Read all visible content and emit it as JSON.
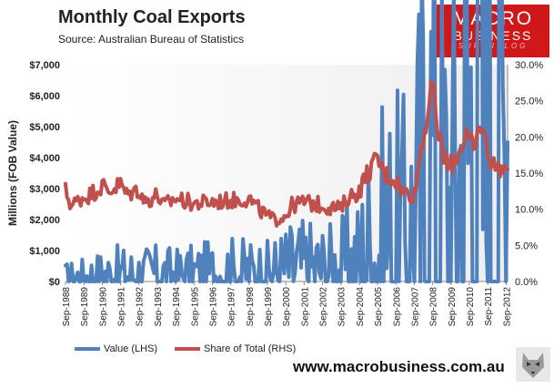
{
  "header": {
    "title": "Monthly  Coal Exports",
    "source": "Source:  Australian Bureau of Statistics"
  },
  "logo": {
    "line1": "MACRO",
    "line2": "BUSINESS",
    "line3": "SUPERBLOG"
  },
  "footer": {
    "url": "www.macrobusiness.com.au"
  },
  "colors": {
    "value": "#4f81bd",
    "share": "#c0504d",
    "plot_bg": "#eeeeee",
    "logo_bg": "#d0181a"
  },
  "chart_data": {
    "type": "line",
    "title": "Monthly  Coal Exports",
    "ylabel": "Millions (FOB Value)",
    "y2label": "",
    "ylim": [
      0,
      7000
    ],
    "y2lim": [
      0,
      30
    ],
    "yticks": [
      "$0",
      "$1,000",
      "$2,000",
      "$3,000",
      "$4,000",
      "$5,000",
      "$6,000",
      "$7,000"
    ],
    "y2ticks": [
      "0.0%",
      "5.0%",
      "10.0%",
      "15.0%",
      "20.0%",
      "25.0%",
      "30.0%"
    ],
    "xticks": [
      "Sep-1988",
      "Sep-1989",
      "Sep-1990",
      "Sep-1991",
      "Sep-1992",
      "Sep-1993",
      "Sep-1994",
      "Sep-1995",
      "Sep-1996",
      "Sep-1997",
      "Sep-1998",
      "Sep-1999",
      "Sep-2000",
      "Sep-2001",
      "Sep-2002",
      "Sep-2003",
      "Sep-2004",
      "Sep-2005",
      "Sep-2006",
      "Sep-2007",
      "Sep-2008",
      "Sep-2009",
      "Sep-2010",
      "Sep-2011",
      "Sep-2012"
    ],
    "x_range": [
      1988.67,
      2012.75
    ],
    "series": [
      {
        "name": "Value (LHS)",
        "axis": "left",
        "points": [
          [
            1988.67,
            130
          ],
          [
            1989.5,
            160
          ],
          [
            1990.67,
            230
          ],
          [
            1991.5,
            250
          ],
          [
            1992.67,
            250
          ],
          [
            1993.67,
            260
          ],
          [
            1994.67,
            240
          ],
          [
            1995.67,
            260
          ],
          [
            1996.67,
            290
          ],
          [
            1997.67,
            320
          ],
          [
            1998.67,
            310
          ],
          [
            1999.67,
            290
          ],
          [
            2000.67,
            420
          ],
          [
            2001.67,
            470
          ],
          [
            2002.67,
            430
          ],
          [
            2003.67,
            450
          ],
          [
            2004.0,
            560
          ],
          [
            2004.67,
            630
          ],
          [
            2005.0,
            1000
          ],
          [
            2005.67,
            1150
          ],
          [
            2006.0,
            1300
          ],
          [
            2006.67,
            1400
          ],
          [
            2007.0,
            1300
          ],
          [
            2007.67,
            1700
          ],
          [
            2008.0,
            2400
          ],
          [
            2008.3,
            3200
          ],
          [
            2008.67,
            3700
          ],
          [
            2009.0,
            2700
          ],
          [
            2009.5,
            2400
          ],
          [
            2009.9,
            2500
          ],
          [
            2010.2,
            3900
          ],
          [
            2010.67,
            4700
          ],
          [
            2011.0,
            5200
          ],
          [
            2011.3,
            5800
          ],
          [
            2011.5,
            6300
          ],
          [
            2011.75,
            5200
          ],
          [
            2012.0,
            5000
          ],
          [
            2012.4,
            4300
          ],
          [
            2012.75,
            4500
          ]
        ]
      },
      {
        "name": "Share of Total (RHS)",
        "axis": "right",
        "points": [
          [
            1988.67,
            12.5
          ],
          [
            1989.0,
            10.5
          ],
          [
            1989.5,
            11.5
          ],
          [
            1990.0,
            12.0
          ],
          [
            1990.67,
            13.3
          ],
          [
            1991.0,
            12.5
          ],
          [
            1991.67,
            13.5
          ],
          [
            1992.0,
            12.0
          ],
          [
            1992.67,
            12.8
          ],
          [
            1993.0,
            11.0
          ],
          [
            1993.67,
            12.0
          ],
          [
            1994.0,
            10.5
          ],
          [
            1994.67,
            11.5
          ],
          [
            1995.67,
            10.8
          ],
          [
            1996.67,
            11.0
          ],
          [
            1997.67,
            11.2
          ],
          [
            1998.67,
            11.5
          ],
          [
            1999.0,
            10.5
          ],
          [
            1999.67,
            9.0
          ],
          [
            2000.0,
            8.5
          ],
          [
            2000.67,
            9.2
          ],
          [
            2001.0,
            10.5
          ],
          [
            2001.67,
            11.0
          ],
          [
            2002.67,
            10.5
          ],
          [
            2003.67,
            10.0
          ],
          [
            2004.0,
            11.5
          ],
          [
            2004.67,
            12.5
          ],
          [
            2005.0,
            14.5
          ],
          [
            2005.67,
            17.0
          ],
          [
            2006.0,
            15.0
          ],
          [
            2006.67,
            14.0
          ],
          [
            2007.0,
            12.5
          ],
          [
            2007.67,
            12.0
          ],
          [
            2008.0,
            18.0
          ],
          [
            2008.3,
            22.0
          ],
          [
            2008.67,
            27.0
          ],
          [
            2009.0,
            20.0
          ],
          [
            2009.5,
            15.5
          ],
          [
            2010.0,
            17.5
          ],
          [
            2010.5,
            20.5
          ],
          [
            2010.9,
            18.0
          ],
          [
            2011.3,
            22.0
          ],
          [
            2011.67,
            18.0
          ],
          [
            2012.0,
            16.0
          ],
          [
            2012.75,
            15.5
          ]
        ]
      }
    ]
  }
}
